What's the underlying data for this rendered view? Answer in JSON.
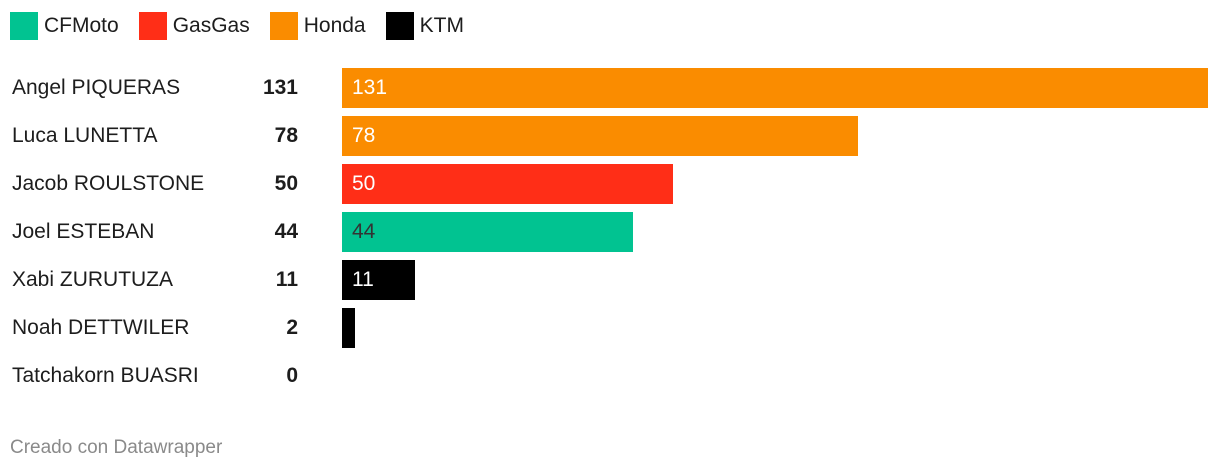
{
  "chart_data": {
    "type": "bar",
    "orientation": "horizontal",
    "legend": [
      {
        "name": "CFMoto",
        "color": "#01c391"
      },
      {
        "name": "GasGas",
        "color": "#ff2e17"
      },
      {
        "name": "Honda",
        "color": "#fa8c00"
      },
      {
        "name": "KTM",
        "color": "#000000"
      }
    ],
    "legend_placement": "top-left",
    "categories": [
      "Angel PIQUERAS",
      "Luca LUNETTA",
      "Jacob ROULSTONE",
      "Joel ESTEBAN",
      "Xabi ZURUTUZA",
      "Noah DETTWILER",
      "Tatchakorn BUASRI"
    ],
    "values": [
      131,
      78,
      50,
      44,
      11,
      2,
      0
    ],
    "teams": [
      "Honda",
      "Honda",
      "GasGas",
      "CFMoto",
      "KTM",
      "KTM",
      "KTM"
    ],
    "bar_labels": [
      "131",
      "78",
      "50",
      "44",
      "11",
      "",
      ""
    ],
    "xlim": [
      0,
      131
    ],
    "grid": false
  },
  "footer": {
    "credit": "Creado con Datawrapper"
  }
}
